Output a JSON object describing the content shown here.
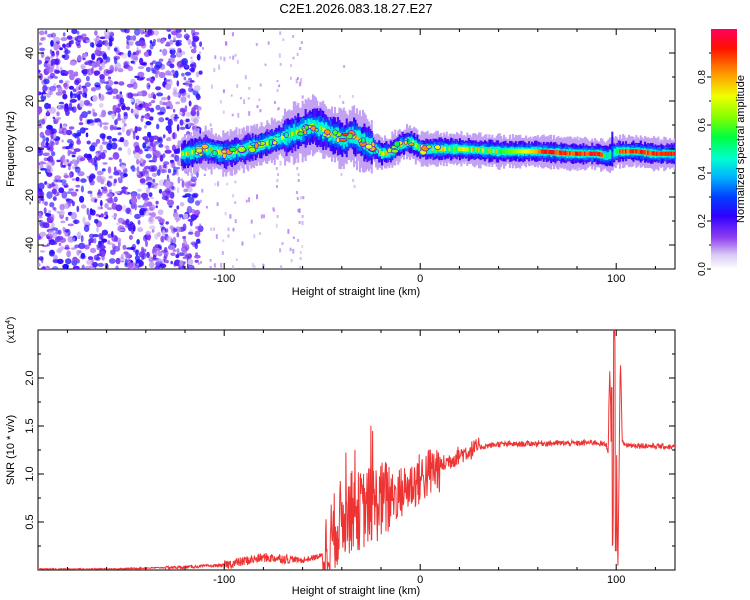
{
  "title": "C2E1.2026.083.18.27.E27",
  "spectrogram": {
    "xlabel": "Height of straight line (km)",
    "ylabel": "Frequency (Hz)",
    "xlim": [
      -195,
      130
    ],
    "ylim": [
      -50,
      50
    ],
    "xticks": [
      -100,
      0,
      100
    ],
    "yticks": [
      -40,
      -20,
      0,
      20,
      40
    ],
    "colorbar_label": "Normalized spectral amplitude",
    "colorbar_ticks": [
      "0.0",
      "0.2",
      "0.4",
      "0.6",
      "0.8"
    ],
    "colorbar_range": [
      0,
      1
    ],
    "colormap": [
      "#ffffff",
      "#c8a8f0",
      "#8a2be2",
      "#5a00ff",
      "#0000ff",
      "#0080ff",
      "#00e0ff",
      "#00ff80",
      "#80ff00",
      "#ffff00",
      "#ff9000",
      "#ff0000",
      "#ff0080"
    ]
  },
  "chart_data": [
    {
      "type": "heatmap",
      "title": "C2E1.2026.083.18.27.E27",
      "xlabel": "Height of straight line (km)",
      "ylabel": "Frequency (Hz)",
      "xlim": [
        -195,
        130
      ],
      "ylim": [
        -50,
        50
      ],
      "value_label": "Normalized spectral amplitude",
      "value_range": [
        0,
        1
      ],
      "description_series": {
        "name": "signal ridge (peak frequency)",
        "x": [
          -120,
          -110,
          -100,
          -90,
          -80,
          -70,
          -60,
          -55,
          -50,
          -45,
          -40,
          -35,
          -30,
          -25,
          -20,
          -15,
          -10,
          -5,
          0,
          10,
          20,
          40,
          60,
          80,
          90,
          95,
          100,
          110,
          120,
          130
        ],
        "y": [
          -2,
          0,
          -2,
          0,
          2,
          5,
          8,
          10,
          8,
          6,
          4,
          6,
          3,
          1,
          -2,
          -1,
          2,
          3,
          0,
          0,
          0,
          -1,
          -1,
          -2,
          -2,
          -3,
          -1,
          -1,
          -2,
          -2
        ]
      },
      "noise_region_km": [
        -195,
        -120
      ]
    },
    {
      "type": "line",
      "title": "",
      "xlabel": "Height of straight line (km)",
      "ylabel": "SNR (10 * v/v)",
      "yscale_label": "(x10",
      "yscale_exp": "4",
      "xlim": [
        -195,
        130
      ],
      "ylim": [
        0,
        2.5
      ],
      "xticks": [
        -100,
        0,
        100
      ],
      "yticks": [
        0.5,
        1.0,
        1.5,
        2.0
      ],
      "series": [
        {
          "name": "SNR",
          "color": "#ee3333",
          "x": [
            -195,
            -160,
            -140,
            -120,
            -100,
            -90,
            -80,
            -70,
            -60,
            -50,
            -45,
            -40,
            -35,
            -30,
            -25,
            -20,
            -15,
            -10,
            -5,
            0,
            10,
            20,
            30,
            40,
            50,
            60,
            70,
            80,
            90,
            95,
            98,
            100,
            102,
            105,
            110,
            120,
            130
          ],
          "y": [
            0.01,
            0.01,
            0.02,
            0.03,
            0.05,
            0.09,
            0.13,
            0.12,
            0.1,
            0.15,
            0.35,
            0.55,
            0.6,
            0.62,
            0.68,
            0.72,
            0.76,
            0.8,
            0.88,
            0.95,
            1.08,
            1.2,
            1.28,
            1.31,
            1.31,
            1.32,
            1.32,
            1.32,
            1.33,
            1.3,
            1.1,
            0.9,
            1.35,
            1.3,
            1.3,
            1.29,
            1.28
          ]
        }
      ]
    }
  ],
  "snr": {
    "xlabel": "Height of straight line (km)",
    "ylabel": "SNR (10 * v/v)",
    "scale_prefix": "(x10",
    "scale_exp": "4",
    "scale_suffix": ")",
    "xticks": [
      -100,
      0,
      100
    ],
    "yticks": [
      "0.5",
      "1.0",
      "1.5",
      "2.0"
    ],
    "line_color": "#ee3333"
  }
}
